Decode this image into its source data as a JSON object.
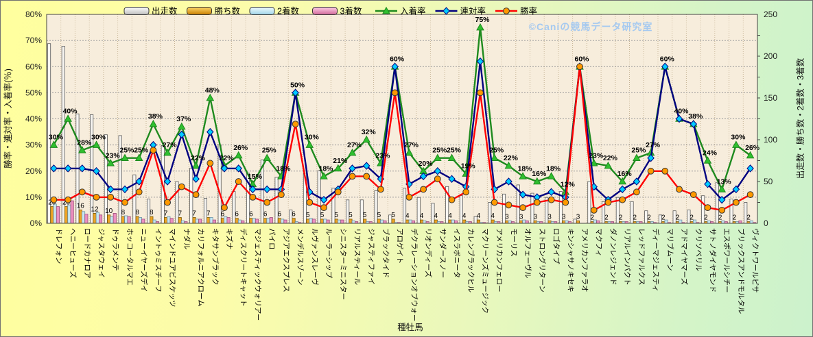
{
  "watermark": "©Caniの競馬データ研究室",
  "chart_data": {
    "type": "combo_bar_line",
    "x_axis_title": "種牡馬",
    "left_axis": {
      "title": "勝率・連対率・入着率(％)",
      "min": 0,
      "max": 80,
      "step": 10,
      "unit": "%"
    },
    "right_axis": {
      "title": "出走数・勝ち数・2着数・3着数",
      "min": 0,
      "max": 250,
      "step": 50
    },
    "legend_position": "top",
    "grid": true,
    "categories": [
      "ドレフォン",
      "ヘニーヒューズ",
      "ロードカナロア",
      "ジャスタウェイ",
      "ドゥラメンテ",
      "ホッコータルマエ",
      "ニューイヤーズデイ",
      "イントゥミスチーフ",
      "マインドユアビスケッツ",
      "ナダル",
      "カリフォルニアクローム",
      "キタサンブラック",
      "キズナ",
      "ディスクリートキャット",
      "マジェスティックウォリアー",
      "パイロ",
      "アジアエクスプレス",
      "メンデルスゾーン",
      "ルヴァンスレーヴ",
      "ルーラーシップ",
      "シニスターミニスター",
      "リアルスティール",
      "ジャスティファイ",
      "ブラックタイド",
      "アロゲイト",
      "デクラレーションオブウォー",
      "リオンディーズ",
      "サンダースノー",
      "イスラボニータ",
      "カレンブラックヒル",
      "マクリーンズミュージック",
      "アメリカンフェロー",
      "モーリス",
      "オルフェーヴル",
      "ストロングリターン",
      "ロゴタイプ",
      "キンシャサノキセキ",
      "アメリカンファラオ",
      "マクフィ",
      "ダノンレジェンド",
      "リアルインパクト",
      "レッドファルクス",
      "ディーマジェスティ",
      "マリブムーン",
      "アドマイヤマーズ",
      "クリソベリル",
      "サトノダイヤモンド",
      "エスポワールシチー",
      "ブリックスアンドモルタル",
      "ヴィクトワールピサ"
    ],
    "bar_series": [
      {
        "name": "出走数",
        "fill": "#f6f4f0",
        "stroke": "#5a5a5a",
        "values": [
          215,
          212,
          131,
          130,
          106,
          105,
          58,
          29,
          93,
          50,
          66,
          30,
          94,
          38,
          60,
          76,
          55,
          16,
          60,
          63,
          42,
          28,
          28,
          39,
          10,
          42,
          31,
          24,
          44,
          33,
          8,
          25,
          35,
          46,
          36,
          31,
          38,
          5,
          50,
          26,
          31,
          26,
          15,
          10,
          15,
          16,
          33,
          49,
          29,
          25
        ]
      },
      {
        "name": "勝ち数",
        "fill": "#eda426",
        "stroke": "#7a5a00",
        "data_labels": true,
        "values": [
          20,
          20,
          16,
          12,
          10,
          8,
          8,
          8,
          7,
          7,
          7,
          7,
          6,
          6,
          6,
          6,
          6,
          6,
          5,
          5,
          5,
          5,
          5,
          5,
          5,
          4,
          4,
          4,
          4,
          4,
          4,
          4,
          3,
          3,
          3,
          3,
          3,
          3,
          2,
          2,
          2,
          2,
          2,
          2,
          2,
          2,
          2,
          2,
          2,
          2
        ]
      },
      {
        "name": "2着数",
        "fill": "#c9e7f2",
        "stroke": "#6b93a6",
        "values": [
          23,
          22,
          14,
          13,
          8,
          9,
          7,
          4,
          8,
          3,
          5,
          7,
          8,
          4,
          6,
          6,
          5,
          2,
          6,
          5,
          4,
          3,
          2,
          4,
          1,
          4,
          3,
          2,
          4,
          2,
          1,
          2,
          3,
          4,
          2,
          2,
          3,
          0,
          4,
          2,
          2,
          2,
          2,
          4,
          4,
          4,
          3,
          3,
          2,
          3
        ]
      },
      {
        "name": "3着数",
        "fill": "#ec8fc0",
        "stroke": "#9c4f79",
        "values": [
          20,
          27,
          11,
          10,
          12,
          8,
          5,
          2,
          6,
          2,
          5,
          4,
          7,
          3,
          5,
          7,
          4,
          1,
          5,
          4,
          4,
          2,
          2,
          3,
          1,
          3,
          2,
          2,
          3,
          2,
          1,
          2,
          2,
          3,
          2,
          2,
          2,
          0,
          3,
          2,
          2,
          2,
          1,
          1,
          1,
          1,
          2,
          2,
          3,
          1
        ]
      }
    ],
    "line_series": [
      {
        "name": "入着率",
        "color": "#1e8a1e",
        "marker": "triangle",
        "marker_fill": "#2fbf2f",
        "data_labels": true,
        "values": [
          30,
          40,
          28,
          30,
          23,
          25,
          25,
          38,
          27,
          37,
          22,
          48,
          22,
          26,
          15,
          25,
          18,
          50,
          30,
          18,
          21,
          27,
          32,
          23,
          60,
          27,
          20,
          25,
          25,
          19,
          75,
          25,
          22,
          18,
          16,
          18,
          12,
          60,
          23,
          22,
          16,
          25,
          27,
          60,
          40,
          38,
          24,
          13,
          30,
          26
        ]
      },
      {
        "name": "連対率",
        "color": "#000080",
        "marker": "diamond",
        "marker_fill": "#00ccff",
        "values": [
          21,
          21,
          21,
          20,
          13,
          13,
          16,
          30,
          16,
          34,
          17,
          35,
          21,
          21,
          13,
          13,
          13,
          50,
          12,
          9,
          13,
          21,
          22,
          17,
          60,
          15,
          18,
          20,
          17,
          14,
          62,
          13,
          16,
          11,
          10,
          12,
          10,
          60,
          14,
          9,
          13,
          16,
          25,
          60,
          40,
          38,
          15,
          9,
          13,
          21
        ]
      },
      {
        "name": "勝率",
        "color": "#ff0000",
        "marker": "circle",
        "marker_fill": "#ff9900",
        "values": [
          9,
          9,
          12,
          10,
          10,
          8,
          12,
          28,
          8,
          14,
          11,
          23,
          6,
          16,
          10,
          8,
          11,
          38,
          8,
          6,
          12,
          18,
          18,
          13,
          50,
          10,
          13,
          17,
          9,
          12,
          50,
          8,
          7,
          6,
          8,
          9,
          8,
          60,
          5,
          8,
          9,
          12,
          20,
          20,
          13,
          11,
          6,
          5,
          8,
          11
        ]
      }
    ]
  }
}
